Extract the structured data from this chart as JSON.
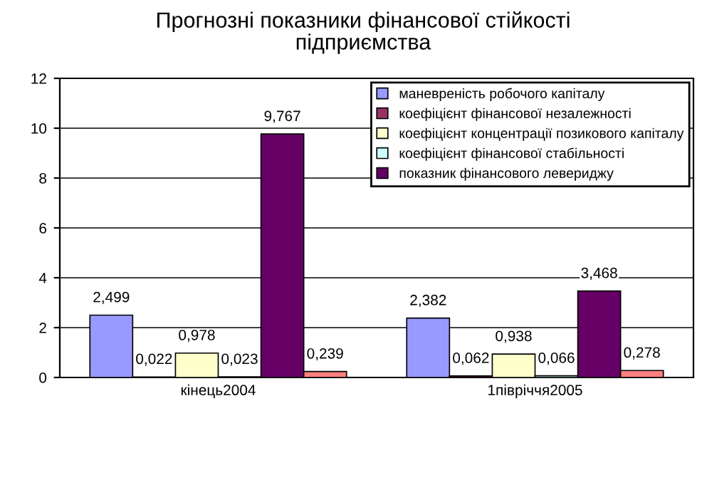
{
  "chart_data": {
    "type": "bar",
    "title": "Прогнозні показники фінансової стійкості\nпідприємства",
    "categories": [
      "кінець2004",
      "1півріччя2005"
    ],
    "series": [
      {
        "name": "маневреність робочого капіталу",
        "color": "#9999ff",
        "values": [
          2.499,
          2.382
        ],
        "value_labels": [
          "2,499",
          "2,382"
        ]
      },
      {
        "name": "коефіцієнт фінансової незалежності",
        "color": "#993366",
        "values": [
          0.022,
          0.062
        ],
        "value_labels": [
          "0,022",
          "0,062"
        ]
      },
      {
        "name": "коефіцієнт концентрації позикового капіталу",
        "color": "#ffffcc",
        "values": [
          0.978,
          0.938
        ],
        "value_labels": [
          "0,978",
          "0,938"
        ]
      },
      {
        "name": "коефіцієнт фінансової стабільності",
        "color": "#ccffff",
        "values": [
          0.023,
          0.066
        ],
        "value_labels": [
          "0,023",
          "0,066"
        ]
      },
      {
        "name": "показник фінансового левериджу",
        "color": "#660066",
        "values": [
          9.767,
          3.468
        ],
        "value_labels": [
          "9,767",
          "3,468"
        ]
      },
      {
        "color": "#ff8080",
        "values": [
          0.239,
          0.278
        ],
        "value_labels": [
          "0,239",
          "0,278"
        ]
      }
    ],
    "ylim": [
      0,
      12
    ],
    "yticks": [
      0,
      2,
      4,
      6,
      8,
      10,
      12
    ],
    "grid": "y",
    "legend": "top right"
  }
}
